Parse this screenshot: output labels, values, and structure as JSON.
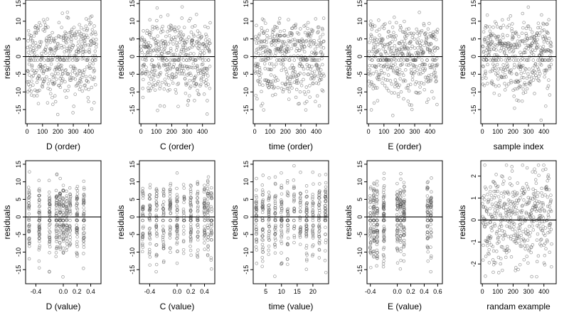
{
  "chart_data": [
    {
      "type": "scatter",
      "xlabel": "D (order)",
      "ylabel": "residuals",
      "xticks": [
        "0",
        "100",
        "200",
        "300",
        "400"
      ],
      "yticks": [
        "-15",
        "-10",
        "-5",
        "0",
        "5",
        "10",
        "15"
      ],
      "xlim": [
        -10,
        480
      ],
      "ylim": [
        -19,
        16
      ],
      "x_kind": "index",
      "zero_line": true,
      "x": [],
      "y": []
    },
    {
      "type": "scatter",
      "xlabel": "C (order)",
      "ylabel": "residuals",
      "xticks": [
        "0",
        "100",
        "200",
        "300",
        "400"
      ],
      "yticks": [
        "-15",
        "-10",
        "-5",
        "0",
        "5",
        "10",
        "15"
      ],
      "xlim": [
        -10,
        480
      ],
      "ylim": [
        -19,
        16
      ],
      "x_kind": "index",
      "zero_line": true,
      "x": [],
      "y": []
    },
    {
      "type": "scatter",
      "xlabel": "time (order)",
      "ylabel": "residuals",
      "xticks": [
        "0",
        "100",
        "200",
        "300",
        "400"
      ],
      "yticks": [
        "-15",
        "-10",
        "-5",
        "0",
        "5",
        "10",
        "15"
      ],
      "xlim": [
        -10,
        480
      ],
      "ylim": [
        -19,
        16
      ],
      "x_kind": "index",
      "zero_line": true,
      "x": [],
      "y": []
    },
    {
      "type": "scatter",
      "xlabel": "E (order)",
      "ylabel": "residuals",
      "xticks": [
        "0",
        "100",
        "200",
        "300",
        "400"
      ],
      "yticks": [
        "-15",
        "-10",
        "-5",
        "0",
        "5",
        "10",
        "15"
      ],
      "xlim": [
        -10,
        480
      ],
      "ylim": [
        -19,
        16
      ],
      "x_kind": "index",
      "zero_line": true,
      "x": [],
      "y": []
    },
    {
      "type": "scatter",
      "xlabel": "sample index",
      "ylabel": "residuals",
      "xticks": [
        "0",
        "100",
        "200",
        "300",
        "400"
      ],
      "yticks": [
        "-15",
        "-10",
        "-5",
        "0",
        "5",
        "10",
        "15"
      ],
      "xlim": [
        -10,
        480
      ],
      "ylim": [
        -19,
        16
      ],
      "x_kind": "index",
      "zero_line": true,
      "x": [],
      "y": []
    },
    {
      "type": "scatter",
      "xlabel": "D (value)",
      "ylabel": "residuals",
      "xticks": [
        "-0.4",
        "0.0",
        "0.2",
        "0.4"
      ],
      "yticks": [
        "-15",
        "-10",
        "-5",
        "0",
        "5",
        "10",
        "15"
      ],
      "xlim": [
        -0.55,
        0.55
      ],
      "ylim": [
        -19,
        16
      ],
      "x_kind": "levels",
      "levels": [
        -0.5,
        -0.35,
        -0.2,
        -0.1,
        -0.05,
        0.0,
        0.05,
        0.1,
        0.2,
        0.3
      ],
      "zero_line": true,
      "x": [],
      "y": []
    },
    {
      "type": "scatter",
      "xlabel": "C (value)",
      "ylabel": "residuals",
      "xticks": [
        "-0.4",
        "0.0",
        "0.2",
        "0.4"
      ],
      "yticks": [
        "-15",
        "-10",
        "-5",
        "0",
        "5",
        "10",
        "15"
      ],
      "xlim": [
        -0.55,
        0.55
      ],
      "ylim": [
        -19,
        16
      ],
      "x_kind": "levels",
      "levels": [
        -0.5,
        -0.4,
        -0.3,
        -0.2,
        -0.1,
        0.0,
        0.1,
        0.2,
        0.3,
        0.4,
        0.45,
        0.5
      ],
      "zero_line": true,
      "x": [],
      "y": []
    },
    {
      "type": "scatter",
      "xlabel": "time (value)",
      "ylabel": "residuals",
      "xticks": [
        "5",
        "10",
        "15",
        "20"
      ],
      "yticks": [
        "-15",
        "-10",
        "-5",
        "0",
        "5",
        "10",
        "15"
      ],
      "xlim": [
        1,
        25
      ],
      "ylim": [
        -19,
        16
      ],
      "x_kind": "levels",
      "levels": [
        2,
        4,
        6,
        8,
        10,
        12,
        14,
        16,
        18,
        20,
        22,
        24
      ],
      "zero_line": true,
      "x": [],
      "y": []
    },
    {
      "type": "scatter",
      "xlabel": "E (value)",
      "ylabel": "residuals",
      "xticks": [
        "-0.4",
        "0.0",
        "0.2",
        "0.4",
        "0.6"
      ],
      "yticks": [
        "-15",
        "-10",
        "-5",
        "0",
        "5",
        "10",
        "15"
      ],
      "xlim": [
        -0.45,
        0.67
      ],
      "ylim": [
        -19,
        16
      ],
      "x_kind": "levels",
      "levels": [
        -0.4,
        -0.35,
        -0.3,
        -0.2,
        0.0,
        0.05,
        0.1,
        0.45,
        0.5
      ],
      "zero_line": true,
      "x": [],
      "y": []
    },
    {
      "type": "scatter",
      "xlabel": "randam example",
      "ylabel": "residuals",
      "xticks": [
        "0",
        "100",
        "200",
        "300",
        "400"
      ],
      "yticks": [
        "-2",
        "-1",
        "0",
        "1",
        "2"
      ],
      "xlim": [
        -10,
        480
      ],
      "ylim": [
        -2.9,
        2.7
      ],
      "x_kind": "index",
      "zero_line": true,
      "normal": true,
      "x": [],
      "y": []
    }
  ]
}
